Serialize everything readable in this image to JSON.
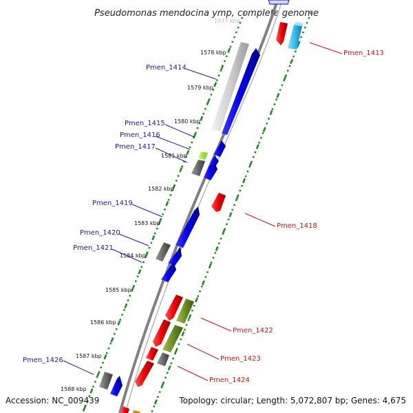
{
  "title": "Pseudomonas mendocina ymp, complete genome",
  "top_tick_partial": "1577 kbp",
  "footer": {
    "accession": "Accession: NC_009439",
    "summary": "Topology: circular; Length: 5,072,807 bp; Genes: 4,675"
  },
  "kbp_ticks": [
    "1578 kbp",
    "1579 kbp",
    "1580 kbp",
    "1581 kbp",
    "1582 kbp",
    "1583 kbp",
    "1584 kbp",
    "1585 kbp",
    "1586 kbp",
    "1587 kbp",
    "1588 kbp"
  ],
  "left_labels": [
    "Pmen_1414",
    "Pmen_1415",
    "Pmen_1416",
    "Pmen_1417",
    "Pmen_1419",
    "Pmen_1420",
    "Pmen_1421",
    "Pmen_1426"
  ],
  "right_labels": [
    "Pmen_1413",
    "Pmen_1418",
    "Pmen_1422",
    "Pmen_1423",
    "Pmen_1424"
  ],
  "colors": {
    "forward_gene": "#0000ee",
    "reverse_gene": "#ee0000",
    "left_label": "#1a1aa6",
    "right_label": "#cc1111",
    "backbone": "#808080",
    "dotted_track": "#228b22",
    "rna_gene": "#c0c0c0",
    "pseudo_gene": "#6b8e23",
    "other_gene": "#6a6a6a",
    "light_gene": "#33bbee"
  }
}
